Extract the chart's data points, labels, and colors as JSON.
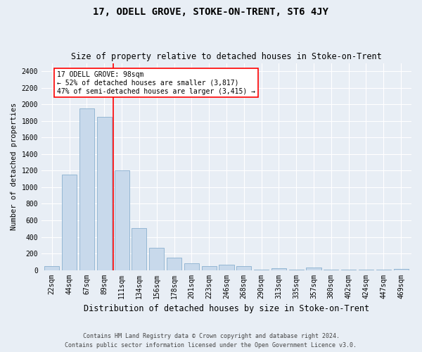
{
  "title": "17, ODELL GROVE, STOKE-ON-TRENT, ST6 4JY",
  "subtitle": "Size of property relative to detached houses in Stoke-on-Trent",
  "xlabel": "Distribution of detached houses by size in Stoke-on-Trent",
  "ylabel": "Number of detached properties",
  "categories": [
    "22sqm",
    "44sqm",
    "67sqm",
    "89sqm",
    "111sqm",
    "134sqm",
    "156sqm",
    "178sqm",
    "201sqm",
    "223sqm",
    "246sqm",
    "268sqm",
    "290sqm",
    "313sqm",
    "335sqm",
    "357sqm",
    "380sqm",
    "402sqm",
    "424sqm",
    "447sqm",
    "469sqm"
  ],
  "values": [
    50,
    1150,
    1950,
    1850,
    1200,
    510,
    270,
    150,
    80,
    50,
    60,
    45,
    5,
    20,
    5,
    30,
    5,
    5,
    5,
    5,
    10
  ],
  "bar_color": "#c8d9eb",
  "bar_edge_color": "#8ab0cf",
  "red_line_index": 3.5,
  "annotation_text": "17 ODELL GROVE: 98sqm\n← 52% of detached houses are smaller (3,817)\n47% of semi-detached houses are larger (3,415) →",
  "annotation_box_color": "white",
  "annotation_box_edge_color": "red",
  "ylim": [
    0,
    2500
  ],
  "yticks": [
    0,
    200,
    400,
    600,
    800,
    1000,
    1200,
    1400,
    1600,
    1800,
    2000,
    2200,
    2400
  ],
  "footer_line1": "Contains HM Land Registry data © Crown copyright and database right 2024.",
  "footer_line2": "Contains public sector information licensed under the Open Government Licence v3.0.",
  "background_color": "#e8eef5",
  "grid_color": "white",
  "title_fontsize": 10,
  "subtitle_fontsize": 8.5,
  "xlabel_fontsize": 8.5,
  "ylabel_fontsize": 7.5,
  "tick_fontsize": 7,
  "annotation_fontsize": 7,
  "footer_fontsize": 6
}
